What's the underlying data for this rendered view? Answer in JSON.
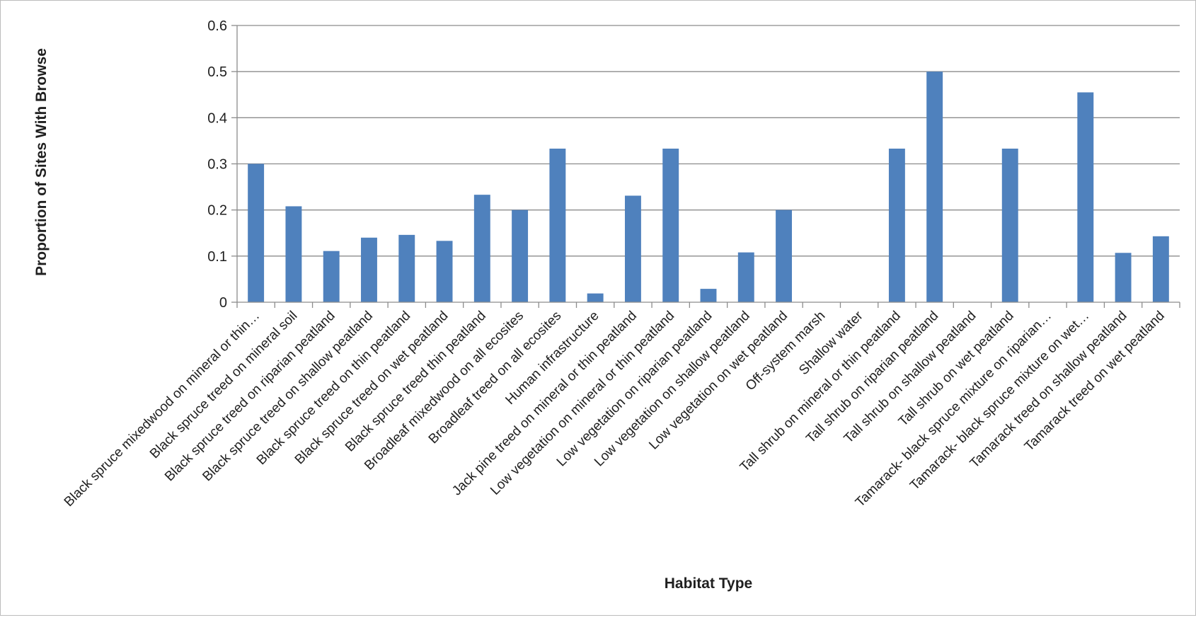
{
  "chart_data": {
    "type": "bar",
    "xlabel": "Habitat Type",
    "ylabel": "Proportion of Sites With Browse",
    "ylim": [
      0,
      0.6
    ],
    "yticks": [
      "0",
      "0.1",
      "0.2",
      "0.3",
      "0.4",
      "0.5",
      "0.6"
    ],
    "grid": true,
    "bar_color": "#4f81bd",
    "categories": [
      "Black spruce mixedwood on mineral or thin…",
      "Black spruce treed on mineral soil",
      "Black spruce treed on riparian peatland",
      "Black spruce treed on shallow peatland",
      "Black spruce treed on thin peatland",
      "Black spruce treed on wet peatland",
      "Black spruce treed thin peatland",
      "Broadleaf mixedwood on all ecosites",
      "Broadleaf treed on all ecosites",
      "Human infrastructure",
      "Jack pine treed on mineral or thin peatland",
      "Low vegetation on mineral or thin peatland",
      "Low vegetation on riparian peatland",
      "Low vegetation on shallow peatland",
      "Low vegetation on wet peatland",
      "Off-system marsh",
      "Shallow water",
      "Tall shrub on mineral or thin peatland",
      "Tall shrub on riparian peatland",
      "Tall shrub on shallow peatland",
      "Tall shrub on wet peatland",
      "Tamarack- black spruce mixture on riparian…",
      "Tamarack- black spruce mixture on wet…",
      "Tamarack treed on shallow peatland",
      "Tamarack treed on wet peatland"
    ],
    "values": [
      0.3,
      0.208,
      0.111,
      0.14,
      0.146,
      0.133,
      0.233,
      0.2,
      0.333,
      0.019,
      0.231,
      0.333,
      0.029,
      0.108,
      0.2,
      0,
      0,
      0.333,
      0.5,
      0,
      0.333,
      0,
      0.455,
      0.107,
      0.143
    ]
  }
}
